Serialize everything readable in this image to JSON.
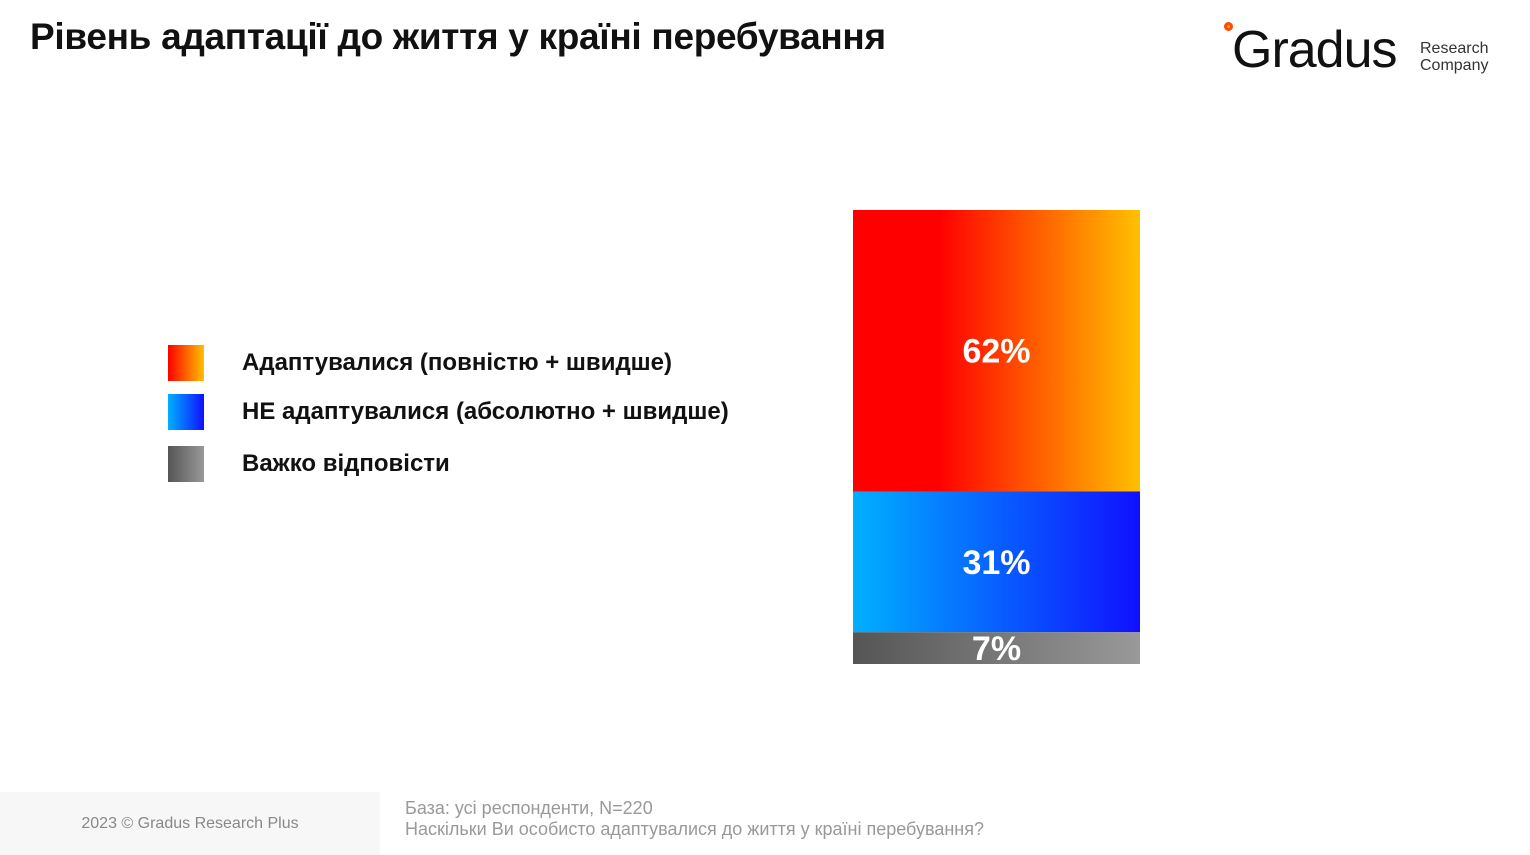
{
  "header": {
    "title": "Рівень адаптації до життя у країні перебування"
  },
  "logo": {
    "name": "Gradus",
    "subtitle_line1": "Research",
    "subtitle_line2": "Company"
  },
  "chart_data": {
    "type": "bar",
    "stacked": true,
    "title": "Рівень адаптації до життя у країні перебування",
    "series": [
      {
        "name": "Адаптувалися (повністю + швидше)",
        "value": 62,
        "label": "62%",
        "colors": [
          "#ff0000",
          "#ffc000"
        ]
      },
      {
        "name": "НЕ адаптувалися (абсолютно + швидше)",
        "value": 31,
        "label": "31%",
        "colors": [
          "#00b0ff",
          "#1010ff"
        ]
      },
      {
        "name": "Важко відповісти",
        "value": 7,
        "label": "7%",
        "colors": [
          "#555555",
          "#999999"
        ]
      }
    ],
    "ylim": [
      0,
      100
    ],
    "legend_position": "left"
  },
  "footer": {
    "copyright": "2023 © Gradus Research Plus",
    "base": "База: усі респонденти, N=220",
    "question": "Наскільки Ви особисто адаптувалися до життя у країні перебування?"
  }
}
